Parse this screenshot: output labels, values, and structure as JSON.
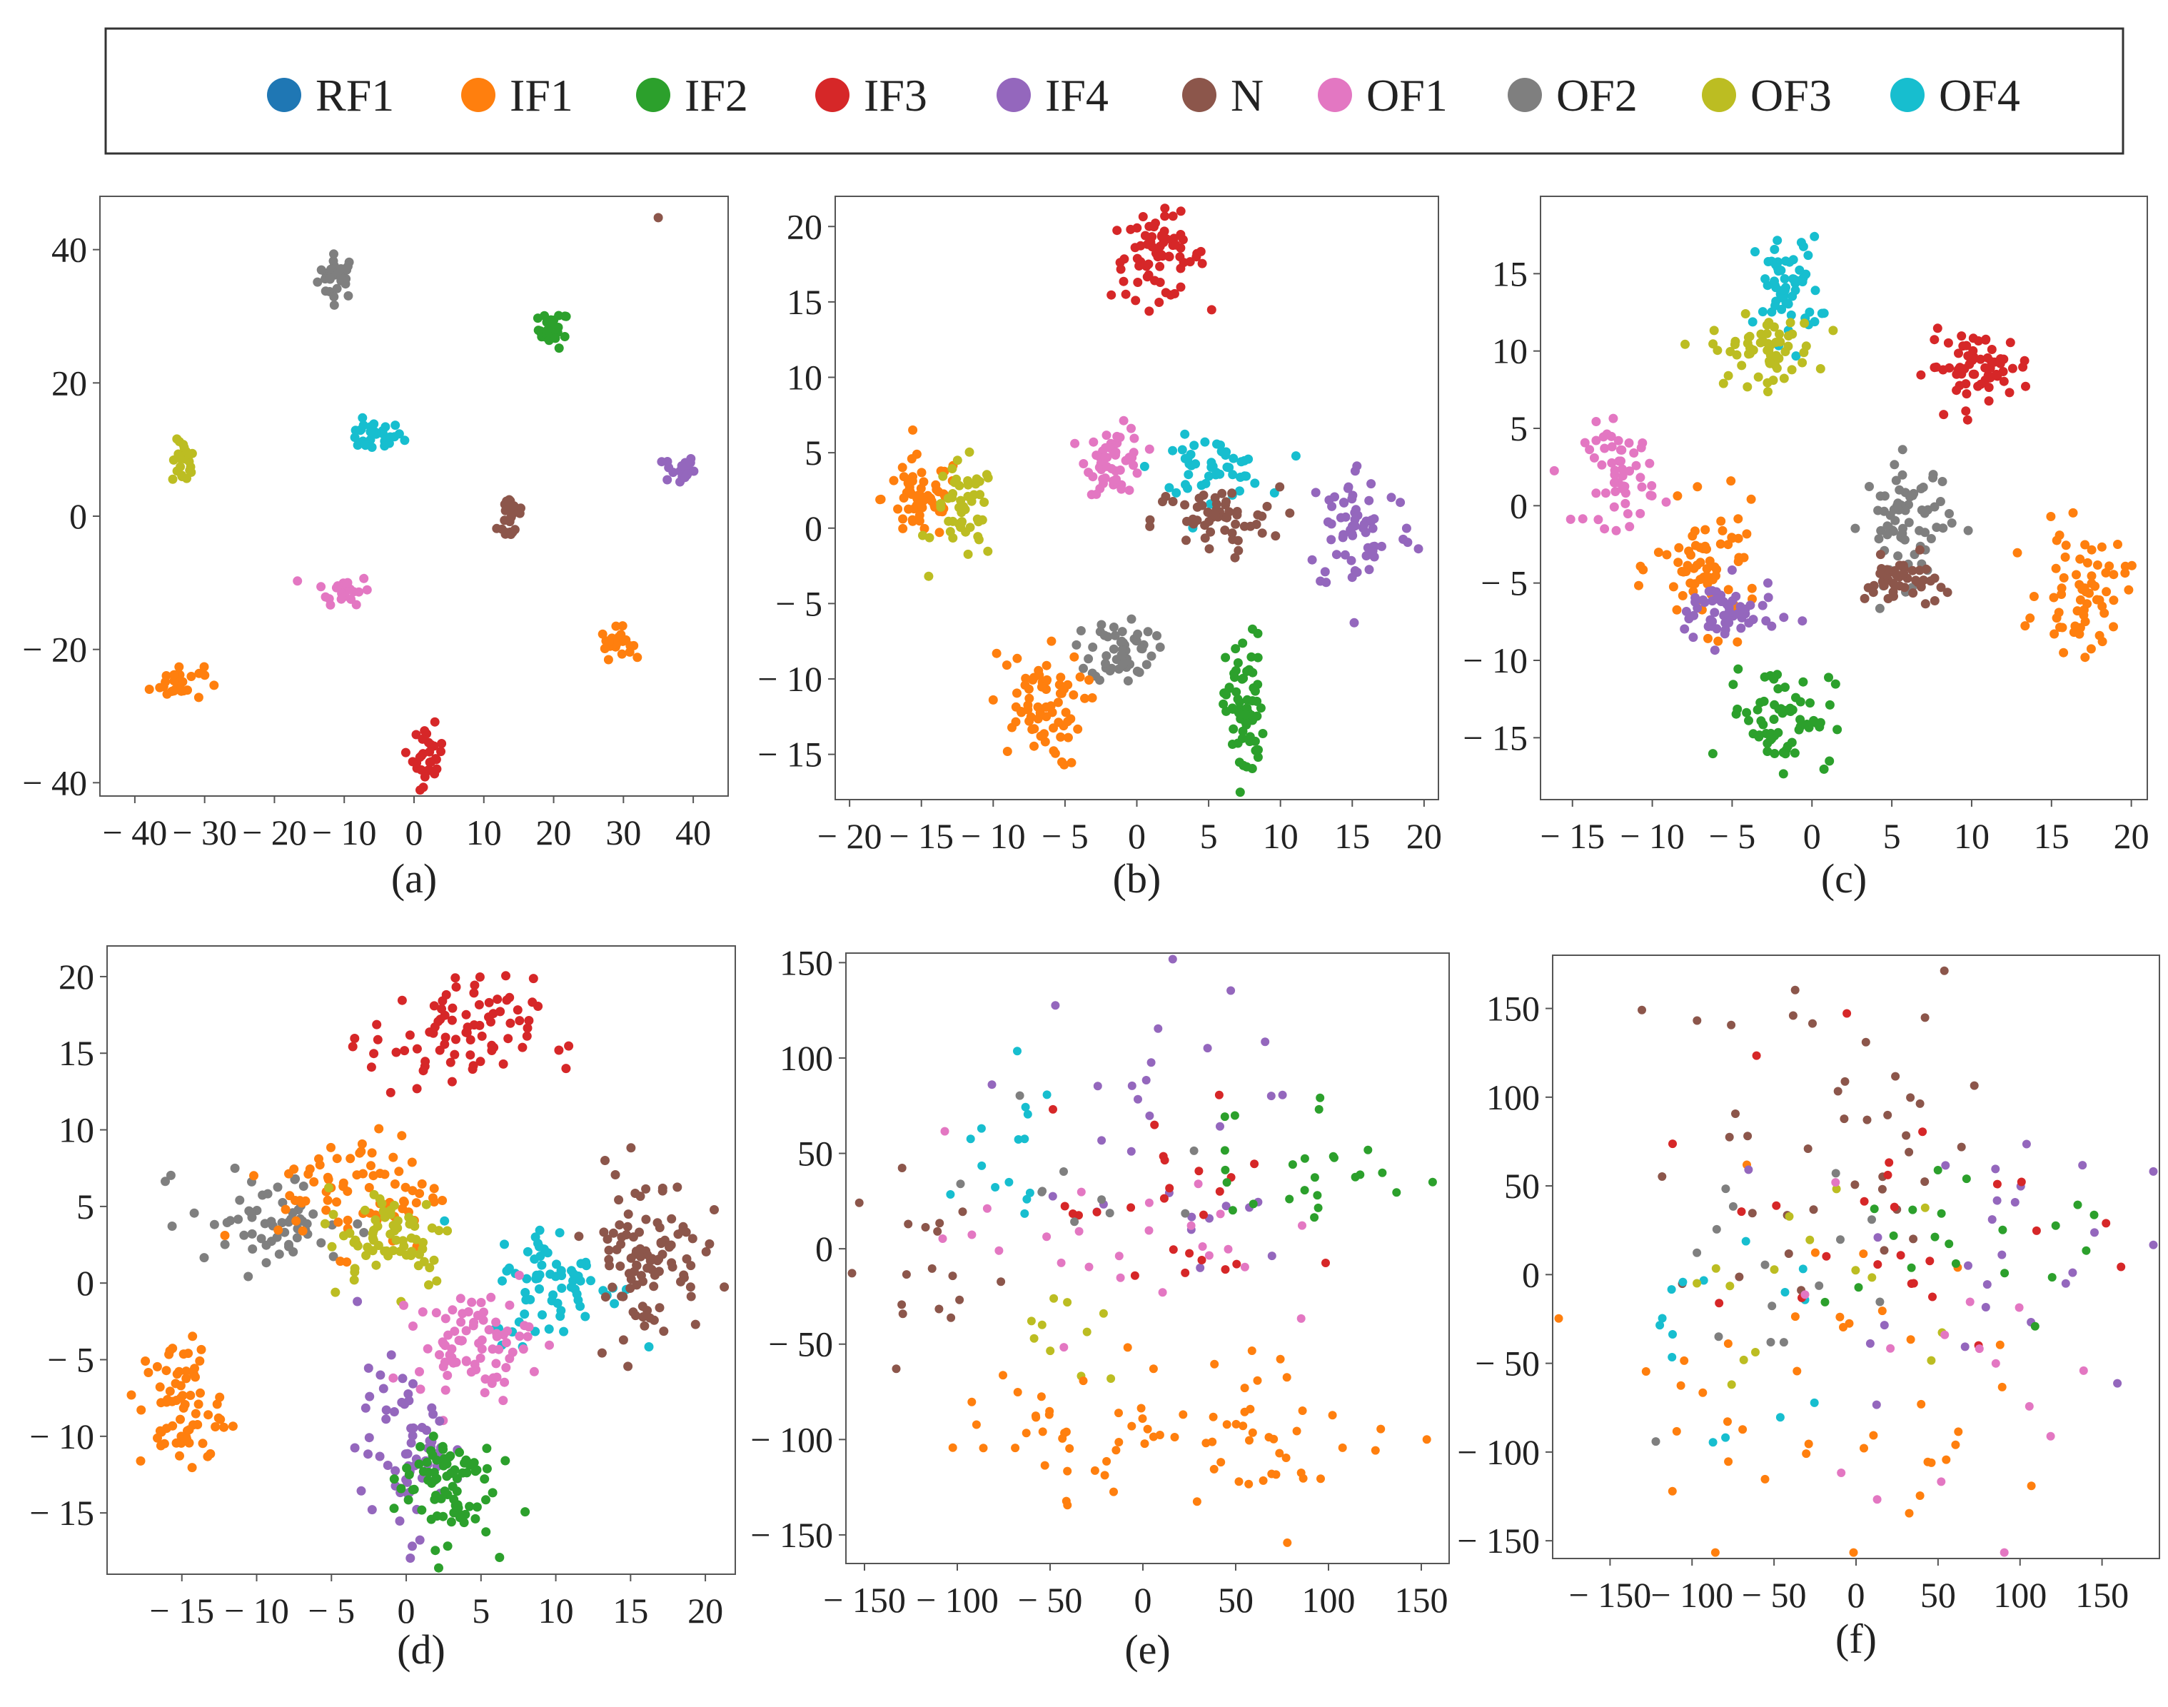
{
  "legend": {
    "items": [
      {
        "label": "RF1",
        "color": "#1f77b4"
      },
      {
        "label": "IF1",
        "color": "#ff7f0e"
      },
      {
        "label": "IF2",
        "color": "#2ca02c"
      },
      {
        "label": "IF3",
        "color": "#d62728"
      },
      {
        "label": "IF4",
        "color": "#9467bd"
      },
      {
        "label": "N",
        "color": "#8c564b"
      },
      {
        "label": "OF1",
        "color": "#e377c2"
      },
      {
        "label": "OF2",
        "color": "#7f7f7f"
      },
      {
        "label": "OF3",
        "color": "#bcbd22"
      },
      {
        "label": "OF4",
        "color": "#17becf"
      }
    ]
  },
  "chart_data": [
    {
      "id": "a",
      "type": "scatter",
      "caption": "(a)",
      "xlim": [
        -45,
        45
      ],
      "ylim": [
        -42,
        48
      ],
      "xticks": [
        -40,
        -30,
        -20,
        -10,
        0,
        10,
        20,
        30,
        40
      ],
      "yticks": [
        -40,
        -20,
        0,
        20,
        40
      ],
      "clusters": [
        {
          "class": "OF2",
          "cx": -11,
          "cy": 36,
          "rx": 2.5,
          "ry": 3,
          "n": 30
        },
        {
          "class": "IF2",
          "cx": 20,
          "cy": 28,
          "rx": 2,
          "ry": 2.5,
          "n": 25
        },
        {
          "class": "OF4",
          "cx": -6,
          "cy": 12,
          "rx": 4,
          "ry": 2,
          "n": 30
        },
        {
          "class": "OF3",
          "cx": -33,
          "cy": 8,
          "rx": 1.5,
          "ry": 3,
          "n": 25
        },
        {
          "class": "IF4",
          "cx": 38,
          "cy": 7,
          "rx": 2,
          "ry": 2,
          "n": 25
        },
        {
          "class": "N",
          "cx": 14,
          "cy": 0,
          "rx": 1.8,
          "ry": 4,
          "n": 25
        },
        {
          "class": "OF1",
          "cx": -10,
          "cy": -11,
          "rx": 3.5,
          "ry": 2,
          "n": 25
        },
        {
          "class": "IF1",
          "cx": 29,
          "cy": -19,
          "rx": 2,
          "ry": 2,
          "n": 25
        },
        {
          "class": "IF1",
          "cx": -34,
          "cy": -25,
          "rx": 3.5,
          "ry": 2.5,
          "n": 30
        },
        {
          "class": "IF3",
          "cx": 2,
          "cy": -36,
          "rx": 2,
          "ry": 4,
          "n": 30
        },
        {
          "class": "N",
          "cx": 35,
          "cy": 45,
          "rx": 0.3,
          "ry": 0.3,
          "n": 1
        }
      ]
    },
    {
      "id": "b",
      "type": "scatter",
      "caption": "(b)",
      "xlim": [
        -21,
        21
      ],
      "ylim": [
        -18,
        22
      ],
      "xticks": [
        -20,
        -15,
        -10,
        -5,
        0,
        5,
        10,
        15,
        20
      ],
      "yticks": [
        -15,
        -10,
        -5,
        0,
        5,
        10,
        15,
        20
      ],
      "clusters": [
        {
          "class": "IF3",
          "cx": 1.5,
          "cy": 18,
          "rx": 3,
          "ry": 2.5,
          "n": 70
        },
        {
          "class": "IF1",
          "cx": -15,
          "cy": 2,
          "rx": 2.5,
          "ry": 2.5,
          "n": 60
        },
        {
          "class": "OF3",
          "cx": -12,
          "cy": 1,
          "rx": 2,
          "ry": 3,
          "n": 50
        },
        {
          "class": "OF1",
          "cx": -1.5,
          "cy": 4.5,
          "rx": 1.8,
          "ry": 2,
          "n": 55
        },
        {
          "class": "OF4",
          "cx": 5,
          "cy": 4,
          "rx": 3.5,
          "ry": 1.8,
          "n": 50
        },
        {
          "class": "N",
          "cx": 5.5,
          "cy": 0.5,
          "rx": 4,
          "ry": 2,
          "n": 55
        },
        {
          "class": "IF4",
          "cx": 15.5,
          "cy": 0,
          "rx": 3.5,
          "ry": 4,
          "n": 65
        },
        {
          "class": "OF2",
          "cx": -1,
          "cy": -8,
          "rx": 2,
          "ry": 2,
          "n": 55
        },
        {
          "class": "IF1",
          "cx": -7,
          "cy": -12,
          "rx": 3,
          "ry": 3.5,
          "n": 70
        },
        {
          "class": "IF2",
          "cx": 7.5,
          "cy": -12,
          "rx": 1.2,
          "ry": 4.5,
          "n": 70
        }
      ]
    },
    {
      "id": "c",
      "type": "scatter",
      "caption": "(c)",
      "xlim": [
        -17,
        21
      ],
      "ylim": [
        -19,
        20
      ],
      "xticks": [
        -15,
        -10,
        -5,
        0,
        5,
        10,
        15,
        20
      ],
      "yticks": [
        -15,
        -10,
        -5,
        0,
        5,
        10,
        15
      ],
      "clusters": [
        {
          "class": "OF4",
          "cx": -1.5,
          "cy": 14,
          "rx": 1.8,
          "ry": 3,
          "n": 60
        },
        {
          "class": "OF3",
          "cx": -3,
          "cy": 10,
          "rx": 3,
          "ry": 2,
          "n": 60
        },
        {
          "class": "IF3",
          "cx": 10.5,
          "cy": 9,
          "rx": 3,
          "ry": 2,
          "n": 65
        },
        {
          "class": "OF1",
          "cx": -12,
          "cy": 2,
          "rx": 2,
          "ry": 3,
          "n": 55
        },
        {
          "class": "OF2",
          "cx": 6,
          "cy": -1,
          "rx": 2.5,
          "ry": 3.5,
          "n": 70
        },
        {
          "class": "N",
          "cx": 5.5,
          "cy": -5,
          "rx": 2,
          "ry": 1.5,
          "n": 45
        },
        {
          "class": "IF1",
          "cx": -6.5,
          "cy": -4,
          "rx": 3,
          "ry": 3.5,
          "n": 70
        },
        {
          "class": "IF4",
          "cx": -5.5,
          "cy": -7,
          "rx": 3,
          "ry": 2,
          "n": 60
        },
        {
          "class": "IF1",
          "cx": 17,
          "cy": -5.5,
          "rx": 2.5,
          "ry": 3.5,
          "n": 65
        },
        {
          "class": "IF2",
          "cx": -2,
          "cy": -13.5,
          "rx": 3,
          "ry": 3,
          "n": 65
        }
      ]
    },
    {
      "id": "d",
      "type": "scatter",
      "caption": "(d)",
      "xlim": [
        -20,
        22
      ],
      "ylim": [
        -19,
        22
      ],
      "xticks": [
        -15,
        -10,
        -5,
        0,
        5,
        10,
        15,
        20
      ],
      "yticks": [
        -15,
        -10,
        -5,
        0,
        5,
        10,
        15,
        20
      ],
      "clusters": [
        {
          "class": "IF3",
          "cx": 3,
          "cy": 16,
          "rx": 5,
          "ry": 3.5,
          "n": 80
        },
        {
          "class": "OF2",
          "cx": -9,
          "cy": 4,
          "rx": 5,
          "ry": 3,
          "n": 60
        },
        {
          "class": "IF1",
          "cx": -3,
          "cy": 6,
          "rx": 5,
          "ry": 3.5,
          "n": 80
        },
        {
          "class": "OF3",
          "cx": -1,
          "cy": 3,
          "rx": 4,
          "ry": 3,
          "n": 70
        },
        {
          "class": "OF4",
          "cx": 10,
          "cy": 0,
          "rx": 4,
          "ry": 3.5,
          "n": 70
        },
        {
          "class": "N",
          "cx": 16,
          "cy": 2,
          "rx": 3.5,
          "ry": 5,
          "n": 100
        },
        {
          "class": "OF1",
          "cx": 4.5,
          "cy": -4,
          "rx": 3.5,
          "ry": 3,
          "n": 80
        },
        {
          "class": "IF1",
          "cx": -15,
          "cy": -8,
          "rx": 2.5,
          "ry": 4,
          "n": 70
        },
        {
          "class": "IF4",
          "cx": 0,
          "cy": -11,
          "rx": 3,
          "ry": 5,
          "n": 70
        },
        {
          "class": "IF2",
          "cx": 2.5,
          "cy": -13,
          "rx": 3,
          "ry": 3.5,
          "n": 80
        }
      ]
    },
    {
      "id": "e",
      "type": "scatter",
      "caption": "(e)",
      "xlim": [
        -160,
        165
      ],
      "ylim": [
        -165,
        155
      ],
      "xticks": [
        -150,
        -100,
        -50,
        0,
        50,
        100,
        150
      ],
      "yticks": [
        -150,
        -100,
        -50,
        0,
        50,
        100,
        150
      ],
      "clusters": [
        {
          "class": "N",
          "cx": -115,
          "cy": -10,
          "rx": 40,
          "ry": 45,
          "n": 18
        },
        {
          "class": "OF4",
          "cx": -75,
          "cy": 40,
          "rx": 30,
          "ry": 60,
          "n": 15
        },
        {
          "class": "IF4",
          "cx": 0,
          "cy": 60,
          "rx": 80,
          "ry": 70,
          "n": 30
        },
        {
          "class": "IF3",
          "cx": 20,
          "cy": 15,
          "rx": 60,
          "ry": 50,
          "n": 25
        },
        {
          "class": "OF1",
          "cx": -20,
          "cy": 10,
          "rx": 80,
          "ry": 50,
          "n": 25
        },
        {
          "class": "IF2",
          "cx": 90,
          "cy": 45,
          "rx": 55,
          "ry": 40,
          "n": 25
        },
        {
          "class": "OF2",
          "cx": -40,
          "cy": 40,
          "rx": 80,
          "ry": 50,
          "n": 10
        },
        {
          "class": "OF3",
          "cx": -45,
          "cy": -50,
          "rx": 30,
          "ry": 20,
          "n": 10
        },
        {
          "class": "IF1",
          "cx": -30,
          "cy": -95,
          "rx": 60,
          "ry": 35,
          "n": 40
        },
        {
          "class": "IF1",
          "cx": 75,
          "cy": -95,
          "rx": 55,
          "ry": 35,
          "n": 40
        }
      ]
    },
    {
      "id": "f",
      "type": "scatter",
      "caption": "(f)",
      "xlim": [
        -185,
        185
      ],
      "ylim": [
        -160,
        180
      ],
      "xticks": [
        -150,
        -100,
        -50,
        0,
        50,
        100,
        150
      ],
      "yticks": [
        -150,
        -100,
        -50,
        0,
        50,
        100,
        150
      ],
      "clusters": [
        {
          "class": "N",
          "cx": -10,
          "cy": 80,
          "rx": 110,
          "ry": 90,
          "n": 40
        },
        {
          "class": "IF1",
          "cx": -40,
          "cy": -60,
          "rx": 110,
          "ry": 90,
          "n": 40
        },
        {
          "class": "IF4",
          "cx": 80,
          "cy": 20,
          "rx": 90,
          "ry": 80,
          "n": 25
        },
        {
          "class": "OF4",
          "cx": -80,
          "cy": -30,
          "rx": 60,
          "ry": 60,
          "n": 15
        },
        {
          "class": "IF2",
          "cx": 60,
          "cy": 20,
          "rx": 100,
          "ry": 60,
          "n": 20
        },
        {
          "class": "IF3",
          "cx": 20,
          "cy": 40,
          "rx": 100,
          "ry": 110,
          "n": 25
        },
        {
          "class": "OF3",
          "cx": 0,
          "cy": -20,
          "rx": 100,
          "ry": 60,
          "n": 15
        },
        {
          "class": "OF2",
          "cx": -60,
          "cy": 10,
          "rx": 100,
          "ry": 80,
          "n": 15
        },
        {
          "class": "OF1",
          "cx": 60,
          "cy": -40,
          "rx": 90,
          "ry": 80,
          "n": 15
        }
      ]
    }
  ]
}
